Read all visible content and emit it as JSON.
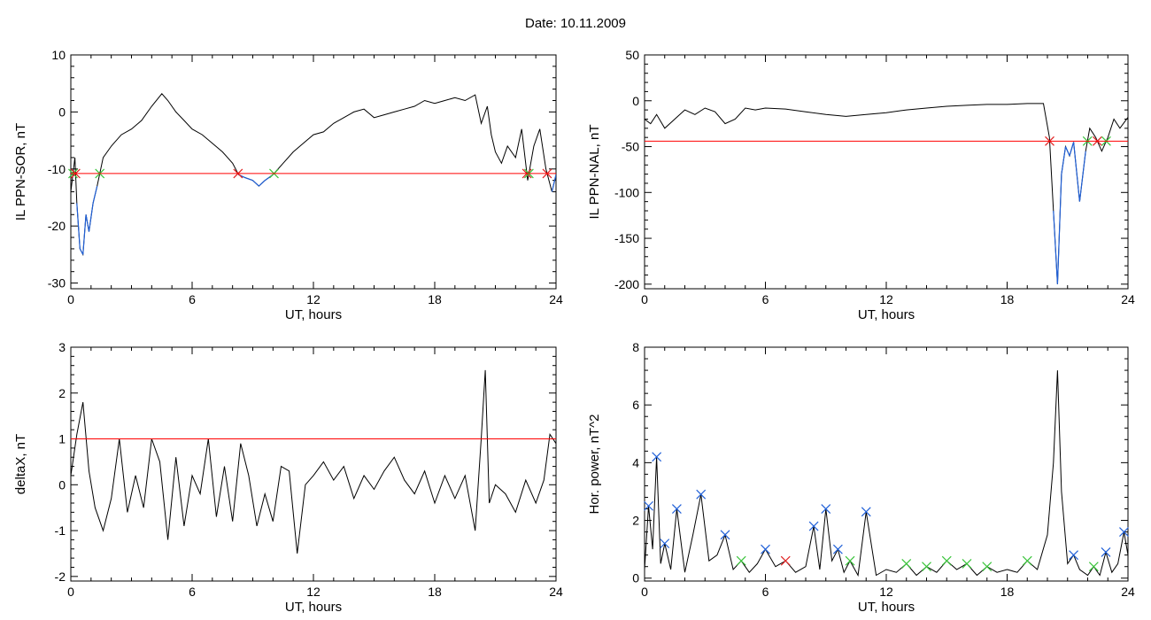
{
  "page_title": "Date:  10.11.2009",
  "colors": {
    "trace": "#000000",
    "below_threshold": "#1f5fd6",
    "threshold": "#ff0000",
    "marker_red": "#e01f1f",
    "marker_green": "#39c43a",
    "marker_blue": "#2060d8"
  },
  "chart_data": [
    {
      "type": "line",
      "title": "",
      "xlabel": "UT, hours",
      "ylabel": "IL PPN-SOR, nT",
      "xlim": [
        0,
        24
      ],
      "ylim": [
        -31,
        10
      ],
      "xticks": [
        0,
        6,
        12,
        18,
        24
      ],
      "yticks": [
        -30,
        -20,
        -10,
        0,
        10
      ],
      "threshold": -10.8,
      "series": [
        {
          "x": [
            0,
            0.2,
            0.3,
            0.45,
            0.6,
            0.75,
            0.9,
            1.1,
            1.3,
            1.6,
            2.0,
            2.5,
            3.0,
            3.5,
            4.0,
            4.5,
            4.8,
            5.2,
            5.6,
            6.0,
            6.5,
            7.0,
            7.5,
            8.0,
            8.3,
            8.6,
            9.0,
            9.3,
            9.6,
            10.0,
            10.5,
            11.0,
            11.5,
            12.0,
            12.5,
            13.0,
            13.5,
            14.0,
            14.5,
            15.0,
            15.5,
            16.0,
            16.5,
            17.0,
            17.5,
            18.0,
            18.5,
            19.0,
            19.5,
            20.0,
            20.3,
            20.6,
            20.8,
            21.0,
            21.3,
            21.6,
            22.0,
            22.3,
            22.6,
            22.9,
            23.2,
            23.5,
            23.8,
            24.0
          ],
          "y": [
            -14,
            -8,
            -16,
            -24,
            -25,
            -18,
            -21,
            -16,
            -13,
            -8,
            -6,
            -4,
            -3,
            -1.5,
            1,
            3.2,
            2,
            0,
            -1.5,
            -3,
            -4,
            -5.5,
            -7,
            -9,
            -11,
            -11.5,
            -12,
            -13,
            -12,
            -11,
            -9,
            -7,
            -5.5,
            -4,
            -3.5,
            -2,
            -1,
            0,
            0.5,
            -1,
            -0.5,
            0,
            0.5,
            1,
            2,
            1.5,
            2,
            2.5,
            2,
            3,
            -2,
            1,
            -4,
            -7,
            -9,
            -6,
            -8,
            -3,
            -12,
            -6,
            -3,
            -10,
            -14,
            -11
          ]
        }
      ]
    },
    {
      "type": "line",
      "title": "",
      "xlabel": "UT, hours",
      "ylabel": "IL PPN-NAL, nT",
      "xlim": [
        0,
        24
      ],
      "ylim": [
        -205,
        50
      ],
      "xticks": [
        0,
        6,
        12,
        18,
        24
      ],
      "yticks": [
        -200,
        -150,
        -100,
        -50,
        0,
        50
      ],
      "threshold": -44,
      "series": [
        {
          "x": [
            0,
            0.3,
            0.6,
            1.0,
            1.5,
            2.0,
            2.5,
            3.0,
            3.5,
            4.0,
            4.5,
            5.0,
            5.5,
            6.0,
            7.0,
            8.0,
            9.0,
            10.0,
            11.0,
            12.0,
            13.0,
            14.0,
            15.0,
            16.0,
            17.0,
            18.0,
            19.0,
            19.8,
            20.1,
            20.3,
            20.5,
            20.7,
            20.9,
            21.1,
            21.3,
            21.6,
            21.9,
            22.1,
            22.4,
            22.7,
            23.0,
            23.3,
            23.6,
            24.0
          ],
          "y": [
            -20,
            -25,
            -15,
            -30,
            -20,
            -10,
            -15,
            -8,
            -12,
            -25,
            -20,
            -8,
            -10,
            -8,
            -9,
            -12,
            -15,
            -17,
            -15,
            -13,
            -10,
            -8,
            -6,
            -5,
            -4,
            -4,
            -3,
            -3,
            -40,
            -120,
            -200,
            -80,
            -50,
            -60,
            -45,
            -110,
            -55,
            -30,
            -40,
            -55,
            -40,
            -20,
            -30,
            -18
          ]
        }
      ]
    },
    {
      "type": "line",
      "title": "",
      "xlabel": "UT, hours",
      "ylabel": "deltaX, nT",
      "xlim": [
        0,
        24
      ],
      "ylim": [
        -2.1,
        3
      ],
      "xticks": [
        0,
        6,
        12,
        18,
        24
      ],
      "yticks": [
        -2,
        -1,
        0,
        1,
        2,
        3
      ],
      "threshold": 1.0,
      "series": [
        {
          "x": [
            0,
            0.3,
            0.6,
            0.9,
            1.2,
            1.6,
            2.0,
            2.4,
            2.8,
            3.2,
            3.6,
            4.0,
            4.4,
            4.8,
            5.2,
            5.6,
            6.0,
            6.4,
            6.8,
            7.2,
            7.6,
            8.0,
            8.4,
            8.8,
            9.2,
            9.6,
            10.0,
            10.4,
            10.8,
            11.2,
            11.6,
            12.0,
            12.5,
            13.0,
            13.5,
            14.0,
            14.5,
            15.0,
            15.5,
            16.0,
            16.5,
            17.0,
            17.5,
            18.0,
            18.5,
            19.0,
            19.5,
            20.0,
            20.3,
            20.5,
            20.7,
            21.0,
            21.5,
            22.0,
            22.5,
            23.0,
            23.4,
            23.7,
            24.0
          ],
          "y": [
            0.2,
            1.1,
            1.8,
            0.3,
            -0.5,
            -1.0,
            -0.3,
            1.0,
            -0.6,
            0.2,
            -0.5,
            1.0,
            0.5,
            -1.2,
            0.6,
            -0.9,
            0.2,
            -0.2,
            1.0,
            -0.7,
            0.4,
            -0.8,
            0.9,
            0.2,
            -0.9,
            -0.2,
            -0.8,
            0.4,
            0.3,
            -1.5,
            0.0,
            0.2,
            0.5,
            0.1,
            0.4,
            -0.3,
            0.2,
            -0.1,
            0.3,
            0.6,
            0.1,
            -0.2,
            0.3,
            -0.4,
            0.2,
            -0.3,
            0.2,
            -1.0,
            1.0,
            2.5,
            -0.4,
            0.0,
            -0.2,
            -0.6,
            0.1,
            -0.4,
            0.1,
            1.1,
            0.9
          ]
        }
      ]
    },
    {
      "type": "line",
      "title": "",
      "xlabel": "UT, hours",
      "ylabel": "Hor. power, nT^2",
      "xlim": [
        0,
        24
      ],
      "ylim": [
        -0.1,
        8
      ],
      "xticks": [
        0,
        6,
        12,
        18,
        24
      ],
      "yticks": [
        0,
        2,
        4,
        6,
        8
      ],
      "series": [
        {
          "x": [
            0,
            0.2,
            0.4,
            0.6,
            0.8,
            1.0,
            1.3,
            1.6,
            2.0,
            2.4,
            2.8,
            3.2,
            3.6,
            4.0,
            4.4,
            4.8,
            5.2,
            5.6,
            6.0,
            6.5,
            7.0,
            7.5,
            8.0,
            8.4,
            8.7,
            9.0,
            9.3,
            9.6,
            9.9,
            10.2,
            10.6,
            11.0,
            11.5,
            12.0,
            12.5,
            13.0,
            13.5,
            14.0,
            14.5,
            15.0,
            15.5,
            16.0,
            16.5,
            17.0,
            17.5,
            18.0,
            18.5,
            19.0,
            19.5,
            20.0,
            20.3,
            20.5,
            20.7,
            21.0,
            21.3,
            21.6,
            22.0,
            22.3,
            22.6,
            22.9,
            23.2,
            23.5,
            23.8,
            24.0
          ],
          "y": [
            0.3,
            2.5,
            1.0,
            4.2,
            0.5,
            1.2,
            0.3,
            2.4,
            0.2,
            1.5,
            2.9,
            0.6,
            0.8,
            1.5,
            0.3,
            0.6,
            0.2,
            0.5,
            1.0,
            0.4,
            0.6,
            0.2,
            0.4,
            1.8,
            0.3,
            2.4,
            0.6,
            1.0,
            0.2,
            0.6,
            0.1,
            2.3,
            0.1,
            0.3,
            0.2,
            0.5,
            0.1,
            0.4,
            0.2,
            0.6,
            0.3,
            0.5,
            0.1,
            0.4,
            0.2,
            0.3,
            0.2,
            0.6,
            0.3,
            1.5,
            4.0,
            7.2,
            3.0,
            0.5,
            0.8,
            0.3,
            0.1,
            0.4,
            0.1,
            0.9,
            0.2,
            0.5,
            1.6,
            0.8
          ]
        }
      ]
    }
  ]
}
